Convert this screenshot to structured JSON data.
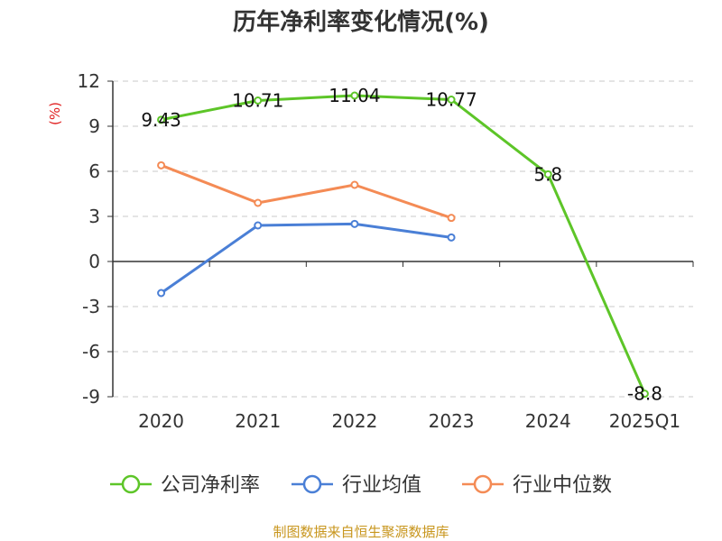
{
  "chart_data": {
    "type": "line",
    "title": "历年净利率变化情况(%)",
    "ylabel": "(%)",
    "xlabel": "",
    "categories": [
      "2020",
      "2021",
      "2022",
      "2023",
      "2024",
      "2025Q1"
    ],
    "ylim": [
      -9,
      12
    ],
    "yticks": [
      12,
      9,
      6,
      3,
      0,
      -3,
      -6,
      -9
    ],
    "grid": true,
    "legend_position": "bottom",
    "series": [
      {
        "name": "公司净利率",
        "color": "#5dc528",
        "values": [
          9.43,
          10.71,
          11.04,
          10.77,
          5.8,
          -8.8
        ],
        "labels": [
          "9.43",
          "10.71",
          "11.04",
          "10.77",
          "5.8",
          "-8.8"
        ]
      },
      {
        "name": "行业均值",
        "color": "#4a7fd6",
        "values": [
          -2.1,
          2.4,
          2.5,
          1.6,
          null,
          null
        ]
      },
      {
        "name": "行业中位数",
        "color": "#f48b55",
        "values": [
          6.4,
          3.9,
          5.1,
          2.9,
          null,
          null
        ]
      }
    ],
    "source": "制图数据来自恒生聚源数据库"
  }
}
